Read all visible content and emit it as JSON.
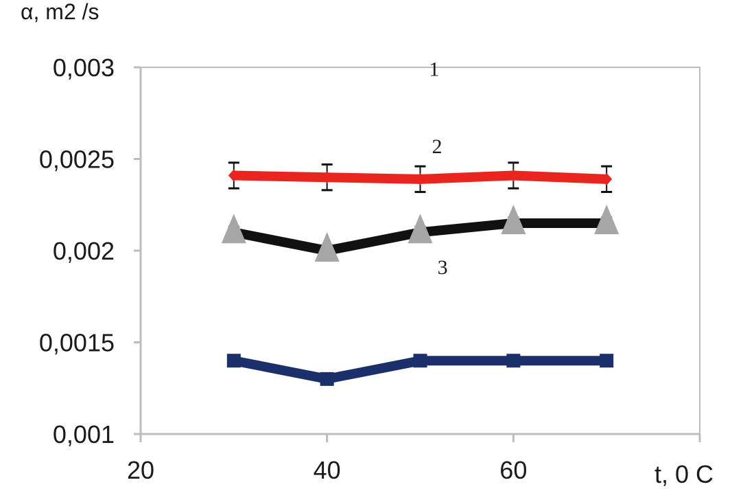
{
  "chart_data": {
    "type": "line",
    "title": "",
    "ylabel": "α, m2 /s",
    "xlabel": "t, 0 C",
    "xlim": [
      20,
      80
    ],
    "ylim": [
      0.001,
      0.003
    ],
    "x_ticks": [
      20,
      40,
      60,
      80
    ],
    "x_tick_labels": [
      "20",
      "40",
      "60"
    ],
    "y_ticks": [
      0.001,
      0.0015,
      0.002,
      0.0025,
      0.003
    ],
    "y_tick_labels": [
      "0,001",
      "0,0015",
      "0,002",
      "0,0025",
      "0,003"
    ],
    "grid": false,
    "x": [
      30,
      40,
      50,
      60,
      70
    ],
    "series": [
      {
        "name": "1",
        "color": "#1b2f6b",
        "marker": "square",
        "values": [
          0.0014,
          0.0013,
          0.0014,
          0.0014,
          0.0014
        ],
        "error": null
      },
      {
        "name": "2",
        "color": "#e8261f",
        "marker": "diamond",
        "values": [
          0.00241,
          0.0024,
          0.00239,
          0.00241,
          0.00239
        ],
        "error": 7e-05
      },
      {
        "name": "3",
        "color": "#111111",
        "marker": "triangle",
        "marker_color": "#a6a6a6",
        "values": [
          0.0021,
          0.002,
          0.0021,
          0.00215,
          0.00215
        ],
        "error": 3e-05
      }
    ],
    "annotations": [
      {
        "text": "1",
        "x": 51.5,
        "y": 0.00299
      },
      {
        "text": "2",
        "x": 51.8,
        "y": 0.00257
      },
      {
        "text": "3",
        "x": 52.4,
        "y": 0.00191
      }
    ]
  }
}
